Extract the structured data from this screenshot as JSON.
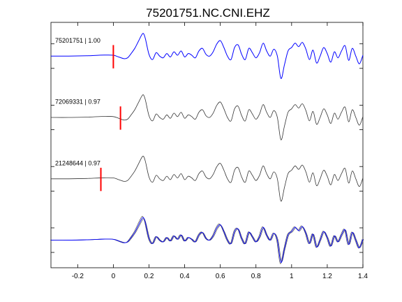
{
  "chart_data": {
    "type": "line",
    "title": "75201751.NC.CNI.EHZ",
    "xlabel": "",
    "ylabel": "",
    "xlim": [
      -0.35,
      1.4
    ],
    "x_ticks": [
      -0.2,
      0,
      0.2,
      0.4,
      0.6,
      0.8,
      1,
      1.2,
      1.4
    ],
    "x_tick_labels": [
      "-0.2",
      "0",
      "0.2",
      "0.4",
      "0.6",
      "0.8",
      "1",
      "1.2",
      "1.4"
    ],
    "grid": false,
    "colors": {
      "primary_trace": "#0000ff",
      "secondary_trace": "#333333",
      "pick": "#ff0000",
      "axes": "#000000"
    },
    "traces": [
      {
        "label": "75201751 | 1.00",
        "color": "#0000ff",
        "pick_time": 0.0
      },
      {
        "label": "72069331 | 0.97",
        "color": "#333333",
        "pick_time": 0.04
      },
      {
        "label": "21248644 | 0.97",
        "color": "#333333",
        "pick_time": -0.07
      },
      {
        "label": "",
        "color": "#333333",
        "overlay": true
      }
    ],
    "waveform": {
      "t": [
        -0.35,
        -0.25,
        -0.15,
        -0.05,
        0.0,
        0.03,
        0.06,
        0.08,
        0.1,
        0.12,
        0.14,
        0.16,
        0.17,
        0.18,
        0.2,
        0.22,
        0.24,
        0.26,
        0.28,
        0.3,
        0.32,
        0.34,
        0.36,
        0.38,
        0.4,
        0.42,
        0.44,
        0.46,
        0.48,
        0.5,
        0.52,
        0.54,
        0.56,
        0.58,
        0.6,
        0.62,
        0.64,
        0.66,
        0.68,
        0.7,
        0.72,
        0.74,
        0.76,
        0.78,
        0.8,
        0.82,
        0.84,
        0.86,
        0.88,
        0.9,
        0.92,
        0.94,
        0.96,
        0.98,
        1.0,
        1.02,
        1.04,
        1.06,
        1.08,
        1.1,
        1.12,
        1.14,
        1.16,
        1.18,
        1.2,
        1.22,
        1.24,
        1.26,
        1.28,
        1.3,
        1.32,
        1.34,
        1.36,
        1.38,
        1.4
      ],
      "v": [
        0.0,
        0.0,
        0.02,
        0.06,
        0.05,
        -0.05,
        -0.15,
        -0.1,
        0.15,
        0.45,
        0.85,
        1.25,
        1.3,
        1.0,
        0.1,
        -0.2,
        0.2,
        0.0,
        -0.1,
        0.15,
        -0.05,
        0.25,
        0.05,
        0.3,
        -0.05,
        0.15,
        0.05,
        -0.1,
        0.3,
        0.45,
        0.1,
        0.0,
        0.25,
        0.7,
        0.9,
        0.5,
        0.0,
        -0.2,
        0.5,
        0.65,
        0.1,
        -0.2,
        0.45,
        0.2,
        -0.1,
        0.2,
        0.75,
        0.3,
        0.0,
        0.4,
        0.0,
        -1.3,
        -0.5,
        0.3,
        0.5,
        0.75,
        0.55,
        0.8,
        0.4,
        -0.2,
        0.35,
        -0.4,
        0.0,
        0.5,
        0.15,
        -0.35,
        0.25,
        -0.1,
        0.3,
        0.6,
        -0.25,
        0.45,
        0.0,
        -0.45,
        0.05
      ]
    }
  }
}
